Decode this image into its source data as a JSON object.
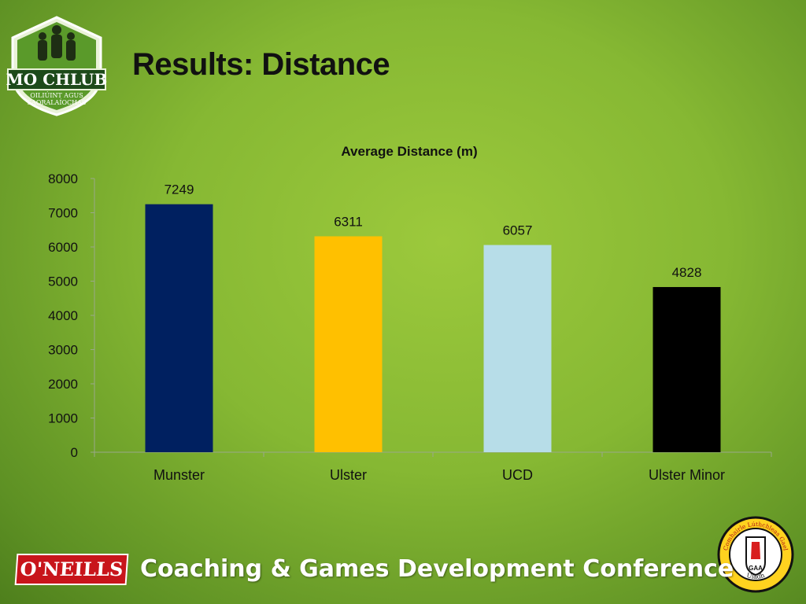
{
  "slide": {
    "title": "Results: Distance",
    "logo_left": {
      "line1": "MO CHLUB",
      "line2": "OILIÚINT AGUS",
      "line3": "SAORALAÍOCHAS",
      "icon": "shield-crest-icon"
    },
    "logo_right": {
      "text_top": "Comhairle Lúthchleas Gael",
      "text_bottom": "Uladh",
      "badge": "GAA",
      "icon": "red-hand-crest-icon"
    },
    "footer": {
      "brand": "O'NEILLS",
      "conference": "Coaching & Games Development Conference"
    }
  },
  "colors": {
    "accent_green": "#8dbf35",
    "munster": "#002060",
    "ulster": "#ffc000",
    "ucd": "#b7dde8",
    "ulster_minor": "#000000"
  },
  "chart_data": {
    "type": "bar",
    "title": "Average Distance (m)",
    "categories": [
      "Munster",
      "Ulster",
      "UCD",
      "Ulster Minor"
    ],
    "values": [
      7249,
      6311,
      6057,
      4828
    ],
    "value_labels": [
      "7249",
      "6311",
      "6057",
      "4828"
    ],
    "bar_colors": [
      "#002060",
      "#ffc000",
      "#b7dde8",
      "#000000"
    ],
    "ylim": [
      0,
      8000
    ],
    "yticks": [
      0,
      1000,
      2000,
      3000,
      4000,
      5000,
      6000,
      7000,
      8000
    ],
    "ytick_labels": [
      "0",
      "1000",
      "2000",
      "3000",
      "4000",
      "5000",
      "6000",
      "7000",
      "8000"
    ],
    "xlabel": "",
    "ylabel": "",
    "grid": false,
    "legend": "none"
  }
}
